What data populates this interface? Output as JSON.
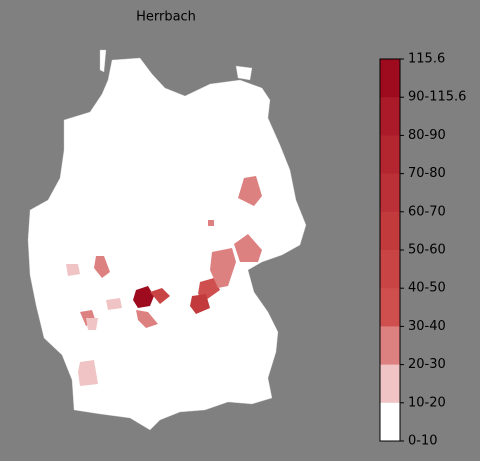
{
  "title": "Herrbach",
  "legend": {
    "labels": [
      "115.6",
      "90-115.6",
      "80-90",
      "70-80",
      "60-70",
      "50-60",
      "40-50",
      "30-40",
      "20-30",
      "10-20",
      "0-10"
    ],
    "colors": [
      "#9e0b1e",
      "#aa1a28",
      "#b32630",
      "#bb3036",
      "#c23a3c",
      "#c94444",
      "#cf4f4f",
      "#dd8080",
      "#f0c4c4",
      "#ffffff"
    ]
  }
}
